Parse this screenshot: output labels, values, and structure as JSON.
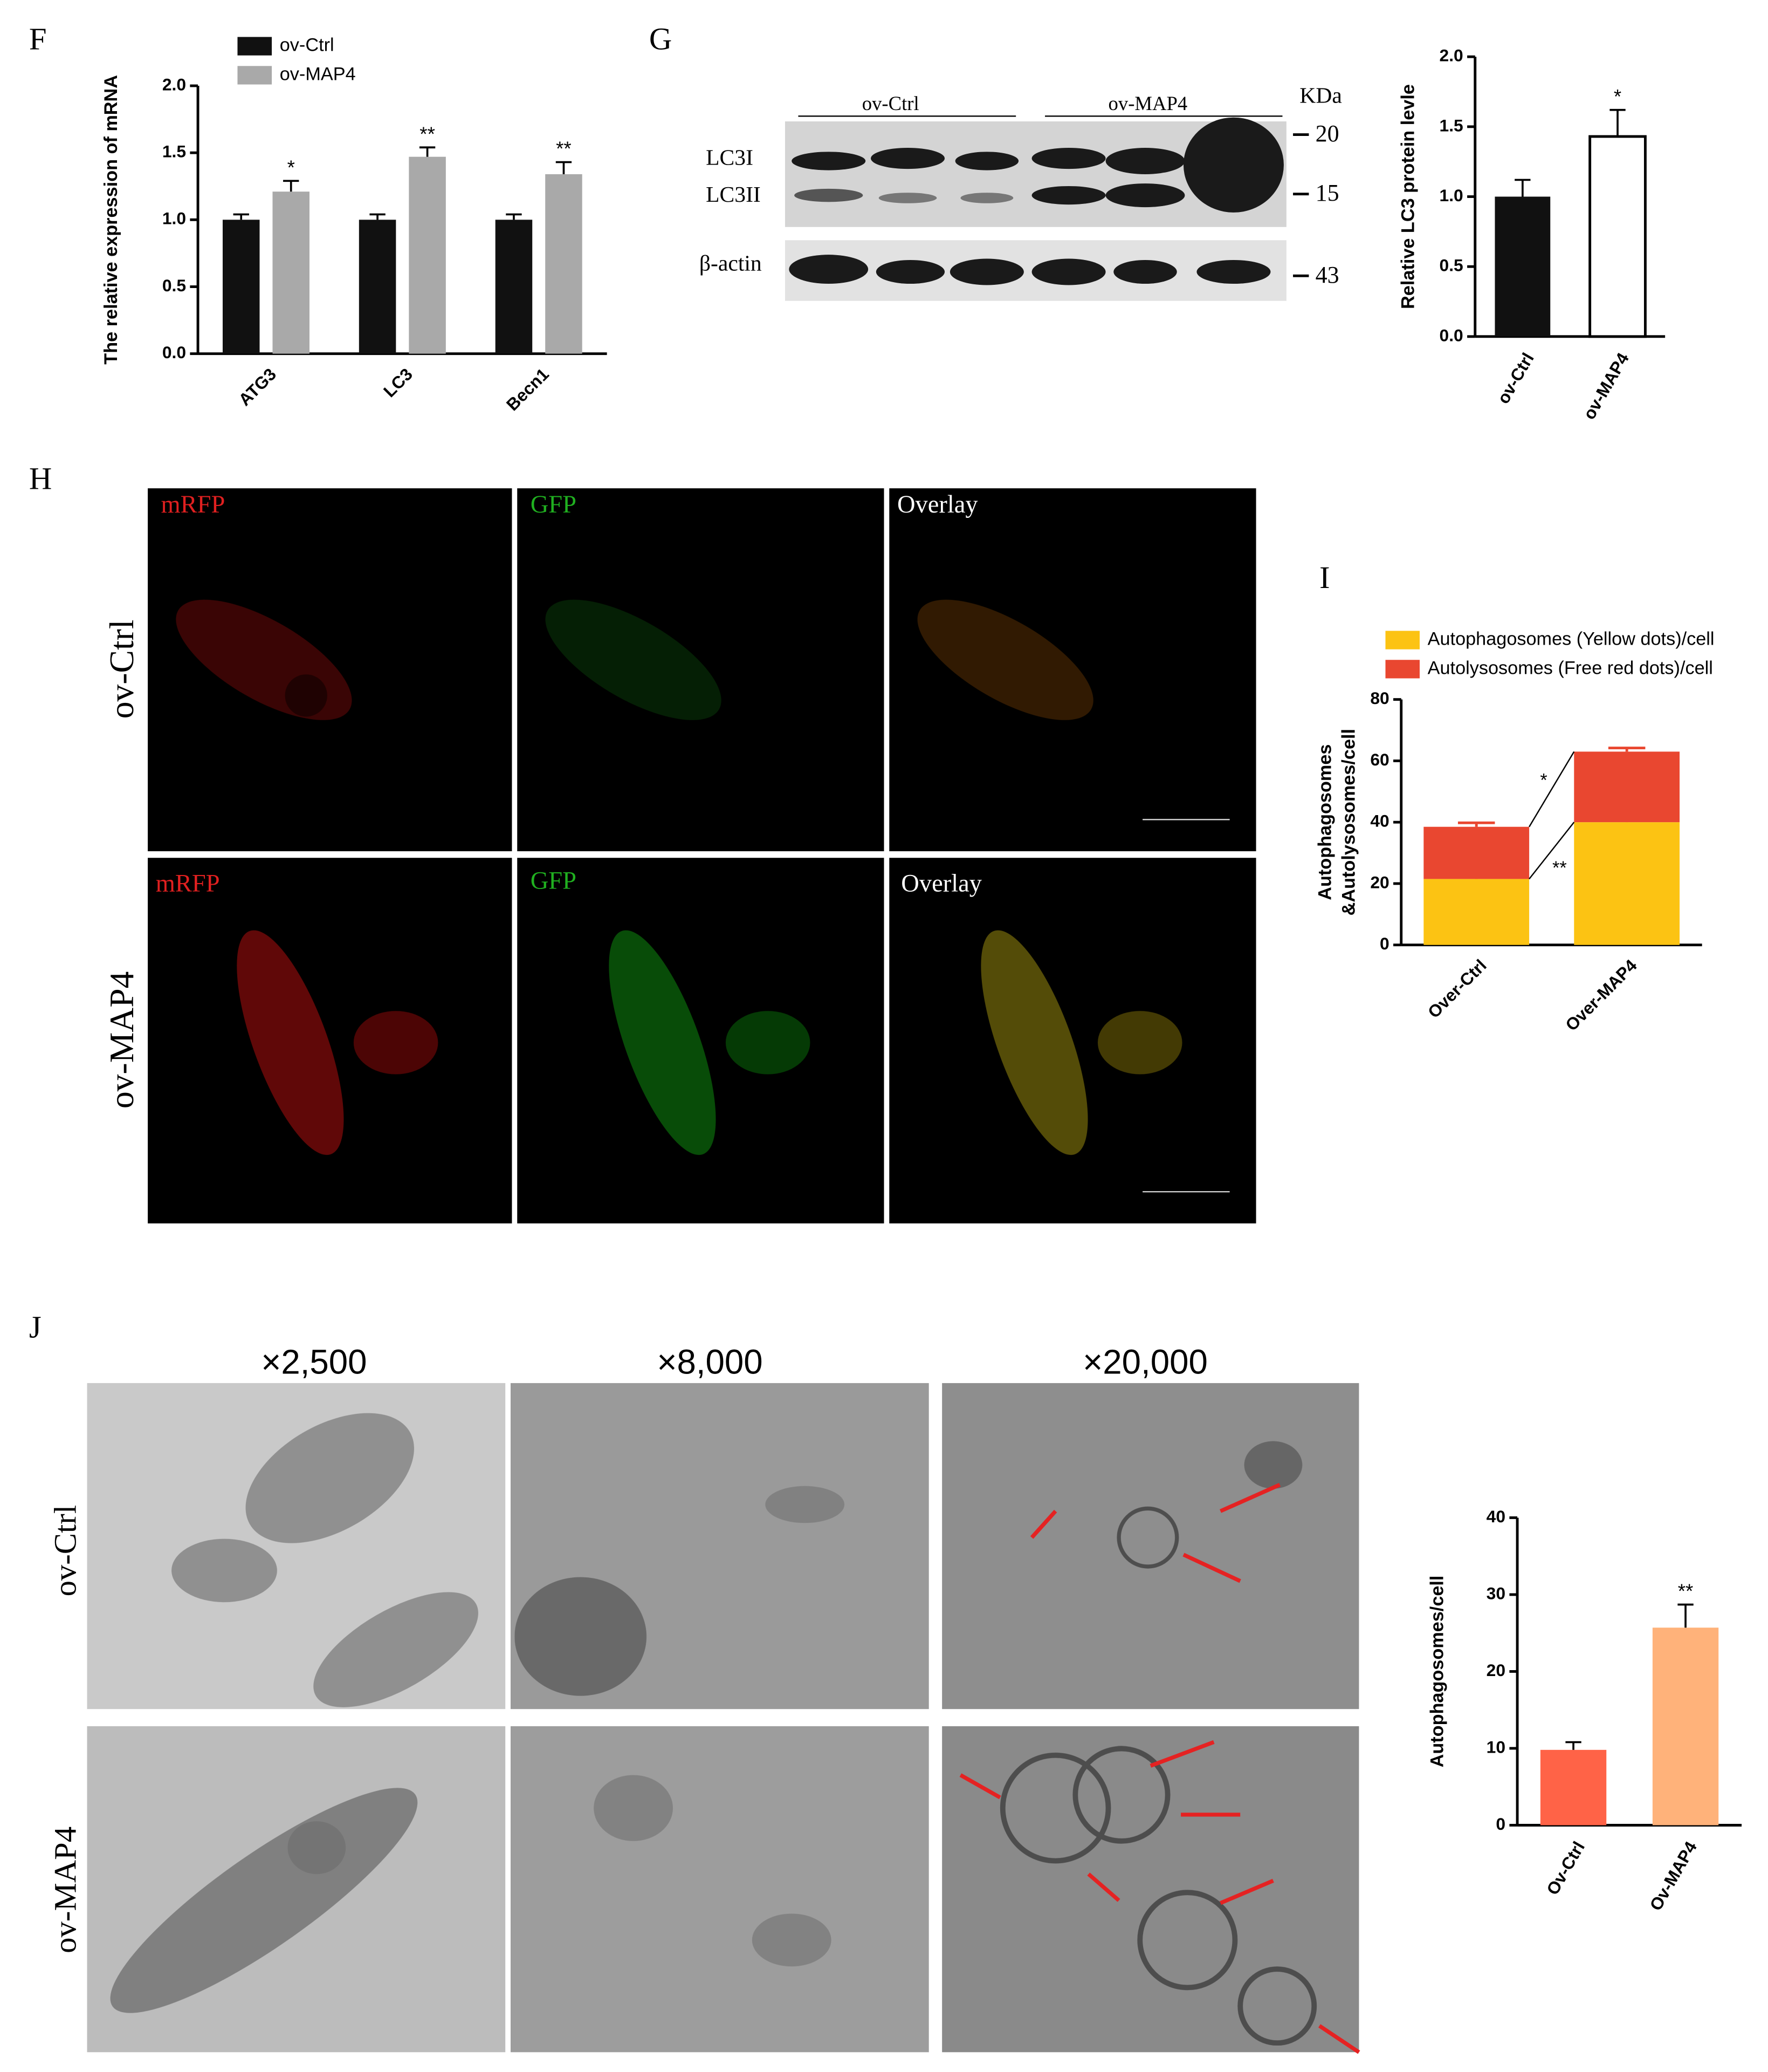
{
  "panel_labels": [
    "F",
    "G",
    "H",
    "I",
    "J"
  ],
  "chart_data": [
    {
      "type": "bar",
      "y_label": "The relative expression of  mRNA",
      "categories": [
        "ATG3",
        "LC3",
        "Becn1"
      ],
      "series": [
        {
          "name": "ov-Ctrl",
          "color": "#111111",
          "values": [
            1.0,
            1.0,
            1.0
          ],
          "errors": [
            0.04,
            0.04,
            0.04
          ]
        },
        {
          "name": "ov-MAP4",
          "color": "#a9a9a9",
          "values": [
            1.21,
            1.47,
            1.34
          ],
          "errors": [
            0.08,
            0.07,
            0.09
          ]
        }
      ],
      "annotations": [
        "*",
        "**",
        "**"
      ],
      "ylim": [
        0,
        2
      ],
      "yticks": [
        {
          "value": 0,
          "label": "0.0"
        },
        0.5,
        {
          "value": 1,
          "label": "1.0"
        },
        1.5,
        {
          "value": 2,
          "label": "2.0"
        }
      ]
    },
    {
      "type": "bar",
      "y_label": "Relative LC3 protein levle",
      "categories": [
        "ov-Ctrl",
        "ov-MAP4"
      ],
      "colors": [
        "#111111",
        "#ffffff"
      ],
      "values": [
        1.0,
        1.43
      ],
      "errors": [
        0.12,
        0.19
      ],
      "annotations": [
        null,
        "*"
      ],
      "ylim": [
        0,
        2
      ],
      "yticks": [
        {
          "value": 0,
          "label": "0.0"
        },
        0.5,
        {
          "value": 1,
          "label": "1.0"
        },
        1.5,
        {
          "value": 2,
          "label": "2.0"
        }
      ]
    },
    {
      "type": "stacked-bar",
      "y_label": [
        "Autophagosomes",
        "&Autolysosomes/cell"
      ],
      "categories": [
        "Over-Ctrl",
        "Over-MAP4"
      ],
      "series": [
        {
          "name": "Autophagosomes (Yellow dots)/cell",
          "color": "#fcc313",
          "values": [
            21.5,
            40
          ],
          "errors": [
            1.8,
            1.8
          ]
        },
        {
          "name": "Autolysosomes (Free red dots)/cell",
          "color": "#e94730",
          "values": [
            17,
            23
          ],
          "errors": [
            1.3,
            1.2
          ]
        }
      ],
      "annotations": [
        "*",
        "**"
      ],
      "ylim": [
        0,
        80
      ],
      "yticks": [
        0,
        20,
        40,
        60,
        80
      ]
    },
    {
      "type": "bar",
      "y_label": "Autophagosomes/cell",
      "categories": [
        "Ov-Ctrl",
        "Ov-MAP4"
      ],
      "colors": [
        "#ff6347",
        "#ffb27a"
      ],
      "values": [
        9.8,
        25.7
      ],
      "errors": [
        1.0,
        3.0
      ],
      "annotations": [
        null,
        "**"
      ],
      "ylim": [
        0,
        40
      ],
      "yticks": [
        0,
        10,
        20,
        30,
        40
      ]
    }
  ],
  "blot": {
    "groups": [
      "ov-Ctrl",
      "ov-MAP4"
    ],
    "unit": "KDa",
    "bands": [
      "LC3I",
      "LC3II",
      "β-actin"
    ],
    "markers": [
      "20",
      "15",
      "43"
    ]
  },
  "fluorescence": {
    "rows": [
      "ov-Ctrl",
      "ov-MAP4"
    ],
    "channels": [
      "mRFP",
      "GFP",
      "Overlay"
    ]
  },
  "tem": {
    "magnifications": [
      "×2,500",
      "×8,000",
      "×20,000"
    ],
    "rows": [
      "ov-Ctrl",
      "ov-MAP4"
    ]
  }
}
